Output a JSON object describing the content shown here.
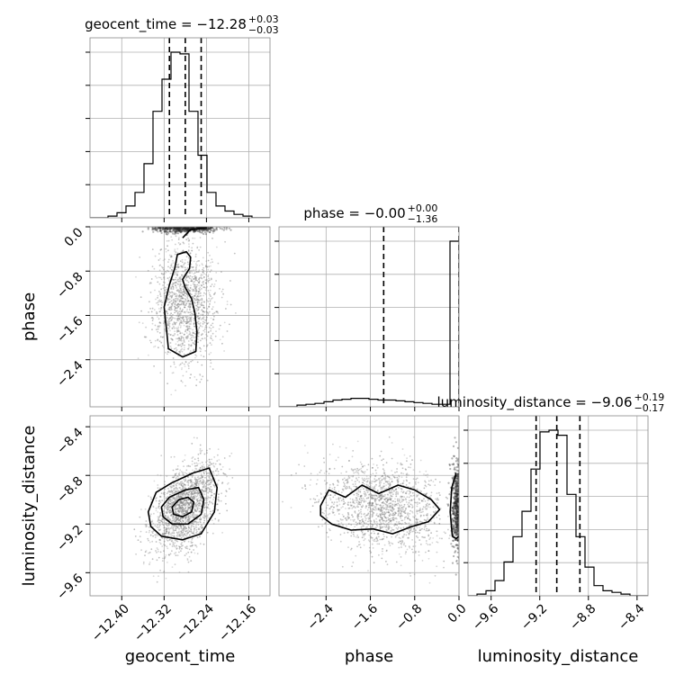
{
  "chart_data": {
    "type": "corner",
    "parameters": [
      "geocent_time",
      "phase",
      "luminosity_distance"
    ],
    "colors": {
      "line": "#000000",
      "grid": "#b0b0b0",
      "points": "#7f7f7f"
    },
    "grid": true,
    "ranges": {
      "geocent_time": [
        -12.46,
        -12.12
      ],
      "phase": [
        -3.25,
        0.0
      ],
      "luminosity_distance": [
        -9.79,
        -8.31
      ]
    },
    "ticks": {
      "geocent_time": [
        -12.4,
        -12.32,
        -12.24,
        -12.16
      ],
      "phase": [
        -2.4,
        -1.6,
        -0.8,
        0.0
      ],
      "luminosity_distance": [
        -9.6,
        -9.2,
        -8.8,
        -8.4
      ]
    },
    "tick_labels": {
      "geocent_time": [
        "−12.40",
        "−12.32",
        "−12.24",
        "−12.16"
      ],
      "phase": [
        "−2.4",
        "−1.6",
        "−0.8",
        "0.0"
      ],
      "luminosity_distance": [
        "−9.6",
        "−9.2",
        "−8.8",
        "−8.4"
      ]
    },
    "titles": [
      {
        "param": "geocent_time",
        "text": "geocent_time = −12.28",
        "sup": "+0.03",
        "sub": "−0.03"
      },
      {
        "param": "phase",
        "text": "phase = −0.00",
        "sup": "+0.00",
        "sub": "−1.36"
      },
      {
        "param": "luminosity_distance",
        "text": "luminosity_distance = −9.06",
        "sup": "+0.19",
        "sub": "−0.17"
      }
    ],
    "quantiles": {
      "geocent_time": [
        -12.31,
        -12.28,
        -12.25
      ],
      "phase": [
        -1.36,
        0.0
      ],
      "luminosity_distance": [
        -9.23,
        -9.06,
        -8.87
      ]
    },
    "histograms": {
      "geocent_time": {
        "edges": [
          -12.46,
          -12.443,
          -12.426,
          -12.409,
          -12.392,
          -12.375,
          -12.358,
          -12.341,
          -12.324,
          -12.307,
          -12.29,
          -12.273,
          -12.256,
          -12.239,
          -12.222,
          -12.205,
          -12.188,
          -12.171,
          -12.154,
          -12.137,
          -12.12
        ],
        "counts": [
          0.0,
          0.0,
          0.01,
          0.03,
          0.07,
          0.15,
          0.32,
          0.63,
          0.82,
          0.98,
          0.97,
          0.63,
          0.37,
          0.15,
          0.07,
          0.04,
          0.02,
          0.01,
          0.0,
          0.0
        ]
      },
      "phase": {
        "edges": [
          -3.25,
          -3.0875,
          -2.925,
          -2.7625,
          -2.6,
          -2.4375,
          -2.275,
          -2.1125,
          -1.95,
          -1.7875,
          -1.625,
          -1.4625,
          -1.3,
          -1.1375,
          -0.975,
          -0.8125,
          -0.65,
          -0.4875,
          -0.325,
          -0.1625,
          0.0
        ],
        "counts": [
          0.0,
          0.0,
          0.01,
          0.015,
          0.02,
          0.03,
          0.04,
          0.045,
          0.05,
          0.05,
          0.045,
          0.04,
          0.04,
          0.035,
          0.03,
          0.025,
          0.02,
          0.015,
          0.015,
          0.98
        ]
      },
      "luminosity_distance": {
        "edges": [
          -9.79,
          -9.716,
          -9.642,
          -9.568,
          -9.494,
          -9.42,
          -9.346,
          -9.272,
          -9.198,
          -9.124,
          -9.05,
          -8.976,
          -8.902,
          -8.828,
          -8.754,
          -8.68,
          -8.606,
          -8.532,
          -8.458,
          -8.384,
          -8.31
        ],
        "counts": [
          0.0,
          0.01,
          0.03,
          0.09,
          0.2,
          0.35,
          0.5,
          0.75,
          0.97,
          0.98,
          0.95,
          0.6,
          0.35,
          0.17,
          0.06,
          0.03,
          0.02,
          0.01,
          0.0,
          0.0
        ]
      }
    },
    "scatter_2d": [
      {
        "x": "geocent_time",
        "y": "phase",
        "x_center": -12.28,
        "x_sd": 0.03,
        "y_center": -1.36,
        "y_sd": 0.55,
        "corr": 0.0,
        "n_points": 1400
      },
      {
        "x": "geocent_time",
        "y": "luminosity_distance",
        "x_center": -12.28,
        "x_sd": 0.03,
        "y_center": -9.06,
        "y_sd": 0.18,
        "corr": 0.45,
        "n_points": 1800
      },
      {
        "x": "phase",
        "y": "luminosity_distance",
        "x_center": -1.36,
        "x_sd": 0.55,
        "y_center": -9.06,
        "y_sd": 0.18,
        "corr": -0.2,
        "n_points": 1600
      }
    ],
    "contours": {
      "geocent_time__phase": [
        [
          [
            -12.285,
            -0.2
          ],
          [
            -12.27,
            -0.05
          ],
          [
            -12.24,
            -0.02
          ],
          [
            -12.26,
            0.0
          ]
        ],
        [
          [
            -12.285,
            -0.95
          ],
          [
            -12.272,
            -0.75
          ],
          [
            -12.27,
            -0.55
          ],
          [
            -12.278,
            -0.45
          ],
          [
            -12.295,
            -0.5
          ],
          [
            -12.3,
            -0.75
          ],
          [
            -12.31,
            -1.05
          ],
          [
            -12.32,
            -1.45
          ],
          [
            -12.315,
            -1.9
          ],
          [
            -12.312,
            -2.2
          ],
          [
            -12.285,
            -2.35
          ],
          [
            -12.26,
            -2.25
          ],
          [
            -12.258,
            -1.9
          ],
          [
            -12.262,
            -1.55
          ],
          [
            -12.268,
            -1.3
          ],
          [
            -12.28,
            -1.1
          ]
        ]
      ],
      "geocent_time__luminosity_distance": [
        [
          [
            -12.35,
            -9.1
          ],
          [
            -12.335,
            -8.94
          ],
          [
            -12.305,
            -8.86
          ],
          [
            -12.265,
            -8.78
          ],
          [
            -12.235,
            -8.74
          ],
          [
            -12.22,
            -8.9
          ],
          [
            -12.225,
            -9.1
          ],
          [
            -12.25,
            -9.28
          ],
          [
            -12.285,
            -9.33
          ],
          [
            -12.325,
            -9.3
          ],
          [
            -12.345,
            -9.22
          ]
        ],
        [
          [
            -12.325,
            -9.06
          ],
          [
            -12.31,
            -8.98
          ],
          [
            -12.28,
            -8.92
          ],
          [
            -12.255,
            -8.9
          ],
          [
            -12.245,
            -9.0
          ],
          [
            -12.25,
            -9.12
          ],
          [
            -12.275,
            -9.2
          ],
          [
            -12.305,
            -9.2
          ],
          [
            -12.322,
            -9.14
          ]
        ],
        [
          [
            -12.305,
            -9.06
          ],
          [
            -12.292,
            -9.0
          ],
          [
            -12.275,
            -8.98
          ],
          [
            -12.264,
            -9.02
          ],
          [
            -12.268,
            -9.1
          ],
          [
            -12.285,
            -9.14
          ],
          [
            -12.302,
            -9.12
          ]
        ]
      ],
      "phase__luminosity_distance": [
        [
          [
            -2.5,
            -9.05
          ],
          [
            -2.35,
            -8.92
          ],
          [
            -2.05,
            -8.98
          ],
          [
            -1.75,
            -8.88
          ],
          [
            -1.45,
            -8.95
          ],
          [
            -1.1,
            -8.88
          ],
          [
            -0.8,
            -8.92
          ],
          [
            -0.5,
            -9.0
          ],
          [
            -0.35,
            -9.08
          ],
          [
            -0.55,
            -9.18
          ],
          [
            -0.85,
            -9.22
          ],
          [
            -1.2,
            -9.28
          ],
          [
            -1.55,
            -9.24
          ],
          [
            -1.95,
            -9.25
          ],
          [
            -2.3,
            -9.2
          ],
          [
            -2.5,
            -9.13
          ]
        ],
        [
          [
            -0.05,
            -8.78
          ],
          [
            -0.13,
            -8.9
          ],
          [
            -0.16,
            -9.1
          ],
          [
            -0.12,
            -9.3
          ],
          [
            -0.05,
            -9.32
          ],
          [
            0.0,
            -9.3
          ]
        ]
      ]
    }
  }
}
